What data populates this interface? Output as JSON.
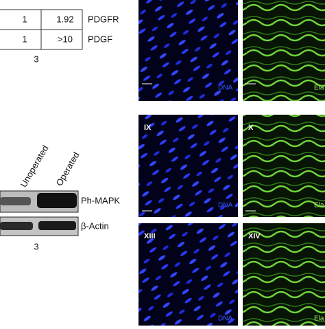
{
  "table": {
    "rows": [
      [
        "1",
        "1.92",
        "PDGFR"
      ],
      [
        "1",
        ">10",
        "PDGF"
      ]
    ],
    "footer": "3"
  },
  "blot": {
    "lanes": [
      "Unoperated",
      "Operated"
    ],
    "bands": [
      "Ph-MAPK",
      "β-Actin"
    ],
    "footer": "3"
  },
  "panels": [
    {
      "stain": "DNA"
    },
    {
      "stain": "Ela"
    },
    {
      "label": "IX",
      "stain": "DNA"
    },
    {
      "label": "X",
      "stain": "Ela"
    },
    {
      "label": "XIII",
      "stain": "DNA"
    },
    {
      "label": "XIV",
      "stain": "Ela"
    }
  ]
}
